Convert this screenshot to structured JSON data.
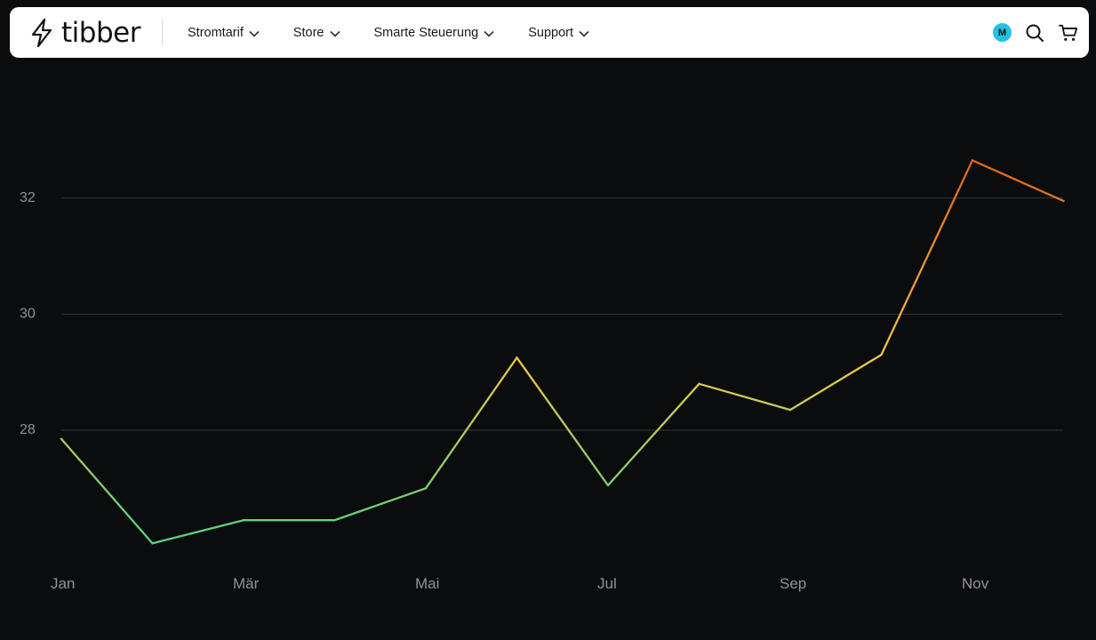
{
  "header": {
    "logo_text": "tibber",
    "menu": [
      {
        "label": "Stromtarif"
      },
      {
        "label": "Store"
      },
      {
        "label": "Smarte Steuerung"
      },
      {
        "label": "Support"
      }
    ],
    "avatar_initial": "M",
    "avatar_color": "#23c0e2",
    "icons": [
      "bolt-logo-icon",
      "chevron-down-icon",
      "search-icon",
      "cart-icon"
    ]
  },
  "colors": {
    "background": "#0b0c0e",
    "gridline": "#34373c",
    "line_low": "#5fd17f",
    "line_mid": "#f0c842",
    "line_high": "#e0621e"
  },
  "chart_data": {
    "type": "line",
    "x": [
      "Jan",
      "Feb",
      "Mär",
      "Apr",
      "Mai",
      "Jun",
      "Jul",
      "Aug",
      "Sep",
      "Okt",
      "Nov",
      "Dez"
    ],
    "values": [
      27.85,
      26.05,
      26.45,
      26.45,
      27.0,
      29.25,
      27.05,
      28.8,
      28.35,
      29.3,
      32.65,
      31.95
    ],
    "x_tick_labels": [
      "Jan",
      "Mär",
      "Mai",
      "Jul",
      "Sep",
      "Nov"
    ],
    "y_ticks": [
      28,
      30,
      32
    ],
    "ylim": [
      25.5,
      34.0
    ],
    "grid": true,
    "title": "",
    "xlabel": "",
    "ylabel": ""
  }
}
